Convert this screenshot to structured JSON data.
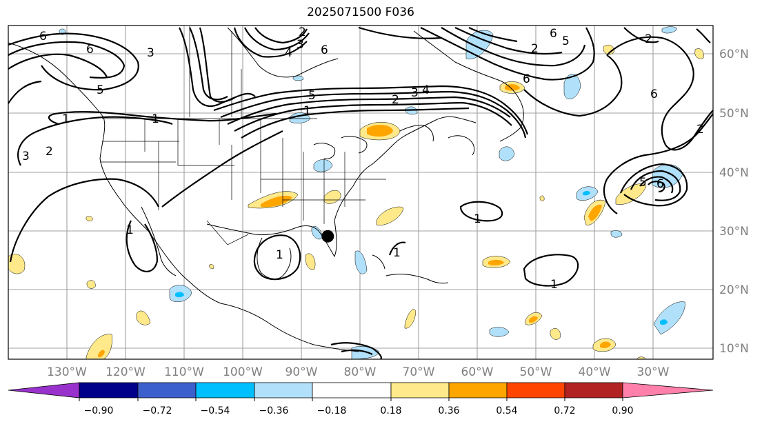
{
  "title": "2025071500 F036",
  "map": {
    "lon_labels": [
      "130°W",
      "120°W",
      "110°W",
      "100°W",
      "90°W",
      "80°W",
      "70°W",
      "60°W",
      "50°W",
      "40°W",
      "30°W"
    ],
    "lat_labels": [
      "60°N",
      "50°N",
      "40°N",
      "30°N",
      "20°N",
      "10°N"
    ],
    "contour_labels": [
      {
        "text": "6"
      },
      {
        "text": "6"
      },
      {
        "text": "3"
      },
      {
        "text": "5"
      },
      {
        "text": "1"
      },
      {
        "text": "1"
      },
      {
        "text": "3"
      },
      {
        "text": "2"
      },
      {
        "text": "4"
      },
      {
        "text": "3"
      },
      {
        "text": "6"
      },
      {
        "text": "2"
      },
      {
        "text": "5"
      },
      {
        "text": "1"
      },
      {
        "text": "2"
      },
      {
        "text": "3"
      },
      {
        "text": "4"
      },
      {
        "text": "6"
      },
      {
        "text": "5"
      },
      {
        "text": "2"
      },
      {
        "text": "6"
      },
      {
        "text": "2"
      },
      {
        "text": "6"
      },
      {
        "text": "2"
      },
      {
        "text": "5"
      },
      {
        "text": "6"
      },
      {
        "text": "1"
      },
      {
        "text": "1"
      },
      {
        "text": "1"
      },
      {
        "text": "1"
      },
      {
        "text": "1"
      }
    ],
    "point_marker": {
      "lon": -85.5,
      "lat": 29.0
    }
  },
  "colorbar": {
    "ticks": [
      "−0.90",
      "−0.72",
      "−0.54",
      "−0.36",
      "−0.18",
      "0.18",
      "0.36",
      "0.54",
      "0.72",
      "0.90"
    ],
    "colors": [
      "#9932cc",
      "#00008b",
      "#3b5fcd",
      "#00bfff",
      "#b0e0fa",
      "#ffffff",
      "#ffe98a",
      "#ffa500",
      "#ff4500",
      "#b22222",
      "#ff80ab"
    ]
  }
}
